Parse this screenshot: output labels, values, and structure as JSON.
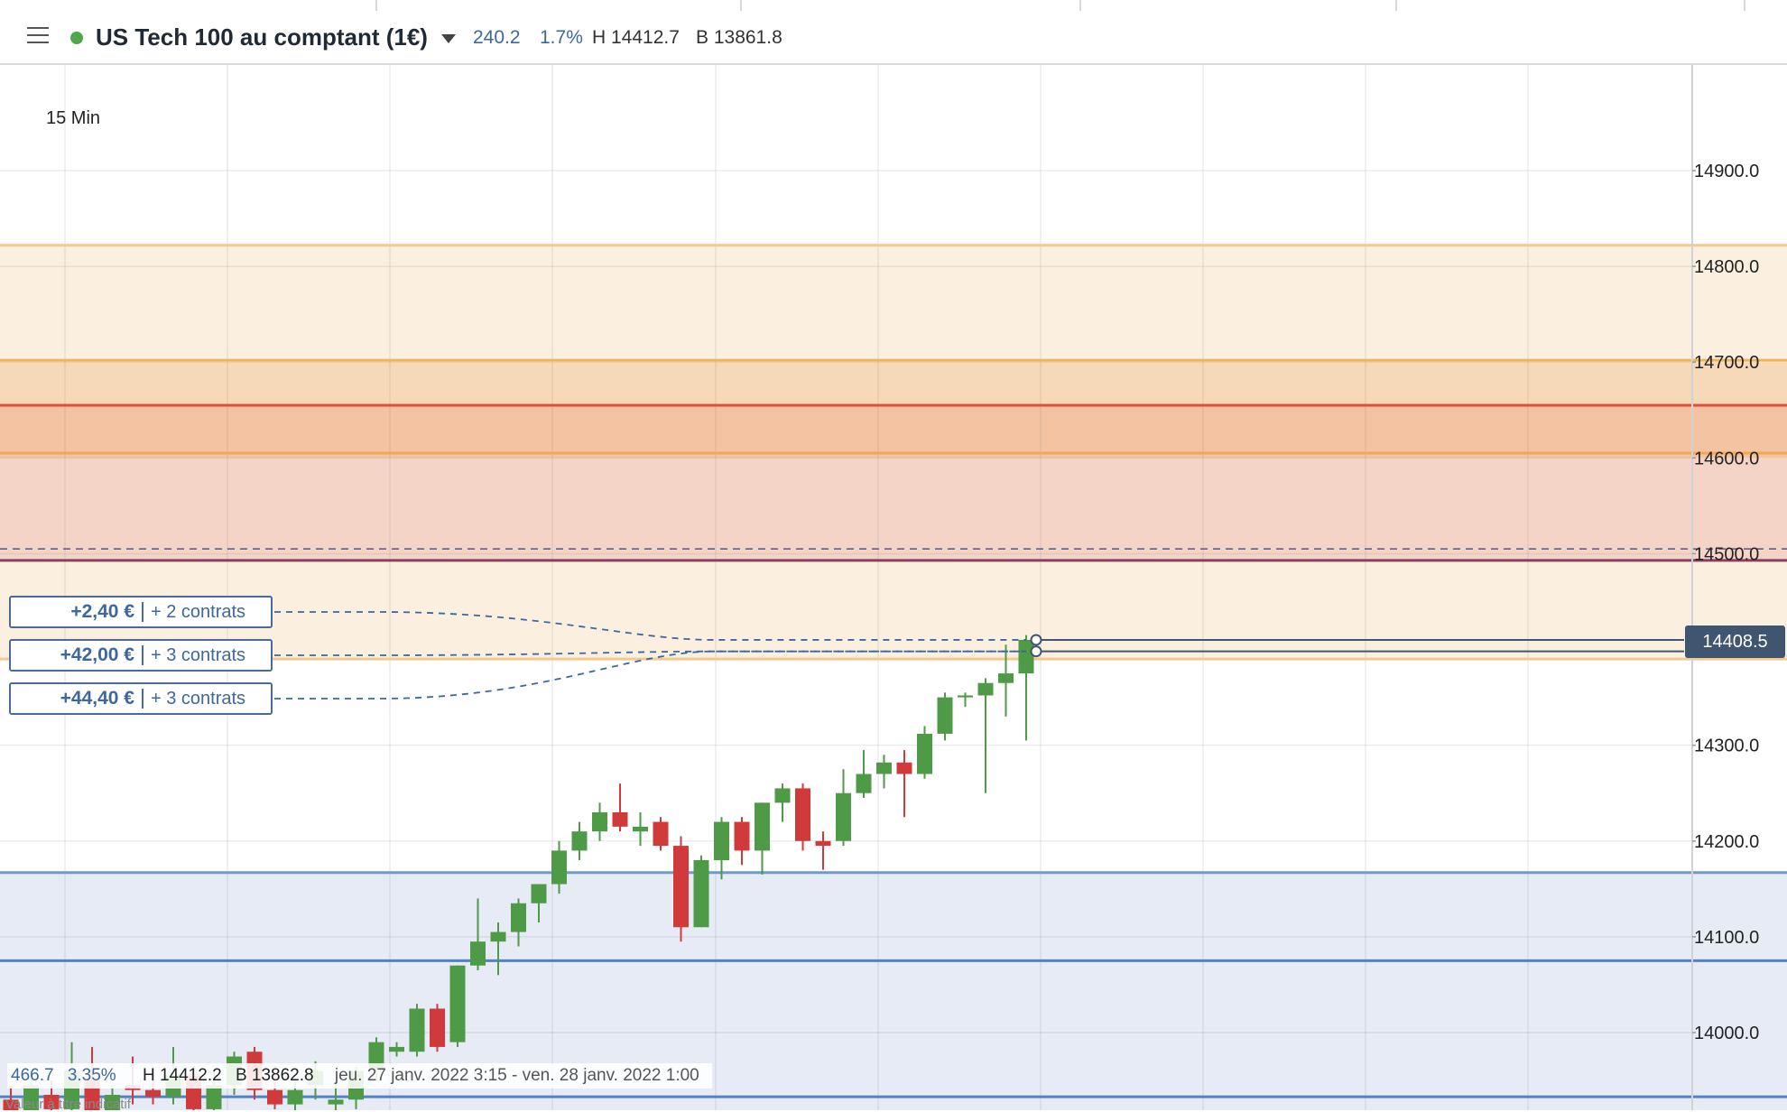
{
  "header": {
    "instrument_name": "US Tech 100 au comptant (1€)",
    "change_points": "240.2",
    "change_percent": "1.7%",
    "high": "H 14412.7",
    "low": "B 13861.8"
  },
  "colors": {
    "up": "#4e9a47",
    "down": "#d13a3a",
    "accent_blue": "#3d679e",
    "status_dot": "#4ea84a",
    "price_tag_bg": "#3f5570"
  },
  "chart": {
    "timeframe_label": "15 Min",
    "current_price_label": "14408.5",
    "positions": [
      {
        "pnl": "+2,40 €",
        "contracts": "+ 2 contrats"
      },
      {
        "pnl": "+42,00 €",
        "contracts": "+ 3 contrats"
      },
      {
        "pnl": "+44,40 €",
        "contracts": "+ 3 contrats"
      }
    ]
  },
  "footer": {
    "range_points": "466.7",
    "range_percent": "3.35%",
    "high": "H 14412.2",
    "low": "B 13862.8",
    "period": "jeu. 27 janv. 2022 3:15 - ven. 28 janv. 2022 1:00",
    "disclaimer": "Valeur à titre indicatif"
  },
  "chart_data": {
    "type": "candlestick",
    "y_ticks": [
      "14900.0",
      "14800.0",
      "14700.0",
      "14600.0",
      "14500.0",
      "14300.0",
      "14200.0",
      "14100.0",
      "14000.0"
    ],
    "y_range": [
      13910,
      14985
    ],
    "grid": true,
    "zones": [
      {
        "from": 14390,
        "to": 14822,
        "color": "#fbf0df"
      },
      {
        "from": 14500,
        "to": 14700,
        "color": "#f6d9b8"
      },
      {
        "from": 14600,
        "to": 14655,
        "color": "#f3c3a2"
      },
      {
        "from": 14492,
        "to": 14600,
        "color": "#f4d4c6"
      },
      {
        "from": 13910,
        "to": 14167,
        "color": "#e6ebf5"
      }
    ],
    "levels": [
      {
        "price": 14822,
        "color": "#f2c98e",
        "style": "solid"
      },
      {
        "price": 14702,
        "color": "#f0b453",
        "style": "solid"
      },
      {
        "price": 14655,
        "color": "#df4f3c",
        "style": "solid"
      },
      {
        "price": 14605,
        "color": "#f0a855",
        "style": "solid"
      },
      {
        "price": 14505,
        "color": "#55578a",
        "style": "dashed"
      },
      {
        "price": 14493,
        "color": "#8a3f60",
        "style": "solid"
      },
      {
        "price": 14390,
        "color": "#f2c98e",
        "style": "solid"
      },
      {
        "price": 14167,
        "color": "#6f9ad0",
        "style": "solid"
      },
      {
        "price": 14075,
        "color": "#4f82c6",
        "style": "solid"
      },
      {
        "price": 13933,
        "color": "#4f82c6",
        "style": "solid"
      }
    ],
    "position_entries": [
      14410,
      14398,
      14398
    ],
    "candles": [
      {
        "o": 13930,
        "h": 13945,
        "l": 13900,
        "c": 13905
      },
      {
        "o": 13900,
        "h": 13960,
        "l": 13895,
        "c": 13945
      },
      {
        "o": 13935,
        "h": 13950,
        "l": 13900,
        "c": 13920
      },
      {
        "o": 13920,
        "h": 13990,
        "l": 13910,
        "c": 13960
      },
      {
        "o": 13950,
        "h": 13985,
        "l": 13890,
        "c": 13900
      },
      {
        "o": 13905,
        "h": 13945,
        "l": 13895,
        "c": 13935
      },
      {
        "o": 13945,
        "h": 13975,
        "l": 13925,
        "c": 13940
      },
      {
        "o": 13940,
        "h": 13960,
        "l": 13925,
        "c": 13933
      },
      {
        "o": 13933,
        "h": 13985,
        "l": 13925,
        "c": 13955
      },
      {
        "o": 13955,
        "h": 13965,
        "l": 13915,
        "c": 13920
      },
      {
        "o": 13920,
        "h": 13960,
        "l": 13910,
        "c": 13945
      },
      {
        "o": 13945,
        "h": 13980,
        "l": 13935,
        "c": 13975
      },
      {
        "o": 13980,
        "h": 13985,
        "l": 13930,
        "c": 13940
      },
      {
        "o": 13940,
        "h": 13965,
        "l": 13920,
        "c": 13925
      },
      {
        "o": 13925,
        "h": 13950,
        "l": 13915,
        "c": 13940
      },
      {
        "o": 13945,
        "h": 13970,
        "l": 13930,
        "c": 13960
      },
      {
        "o": 13925,
        "h": 13950,
        "l": 13915,
        "c": 13930
      },
      {
        "o": 13930,
        "h": 13965,
        "l": 13920,
        "c": 13960
      },
      {
        "o": 13960,
        "h": 13995,
        "l": 13950,
        "c": 13990
      },
      {
        "o": 13980,
        "h": 13990,
        "l": 13975,
        "c": 13985
      },
      {
        "o": 13980,
        "h": 14030,
        "l": 13975,
        "c": 14025
      },
      {
        "o": 14025,
        "h": 14030,
        "l": 13980,
        "c": 13985
      },
      {
        "o": 13990,
        "h": 14070,
        "l": 13985,
        "c": 14070
      },
      {
        "o": 14070,
        "h": 14140,
        "l": 14065,
        "c": 14095
      },
      {
        "o": 14095,
        "h": 14115,
        "l": 14060,
        "c": 14105
      },
      {
        "o": 14105,
        "h": 14140,
        "l": 14090,
        "c": 14135
      },
      {
        "o": 14135,
        "h": 14150,
        "l": 14115,
        "c": 14155
      },
      {
        "o": 14155,
        "h": 14200,
        "l": 14145,
        "c": 14190
      },
      {
        "o": 14190,
        "h": 14220,
        "l": 14180,
        "c": 14210
      },
      {
        "o": 14210,
        "h": 14240,
        "l": 14200,
        "c": 14230
      },
      {
        "o": 14230,
        "h": 14260,
        "l": 14210,
        "c": 14215
      },
      {
        "o": 14210,
        "h": 14230,
        "l": 14195,
        "c": 14215
      },
      {
        "o": 14220,
        "h": 14225,
        "l": 14190,
        "c": 14195
      },
      {
        "o": 14195,
        "h": 14205,
        "l": 14095,
        "c": 14110
      },
      {
        "o": 14110,
        "h": 14185,
        "l": 14110,
        "c": 14180
      },
      {
        "o": 14180,
        "h": 14225,
        "l": 14160,
        "c": 14220
      },
      {
        "o": 14220,
        "h": 14225,
        "l": 14175,
        "c": 14190
      },
      {
        "o": 14190,
        "h": 14240,
        "l": 14165,
        "c": 14240
      },
      {
        "o": 14240,
        "h": 14260,
        "l": 14220,
        "c": 14255
      },
      {
        "o": 14255,
        "h": 14260,
        "l": 14190,
        "c": 14200
      },
      {
        "o": 14200,
        "h": 14210,
        "l": 14170,
        "c": 14195
      },
      {
        "o": 14200,
        "h": 14275,
        "l": 14195,
        "c": 14250
      },
      {
        "o": 14250,
        "h": 14295,
        "l": 14245,
        "c": 14270
      },
      {
        "o": 14270,
        "h": 14290,
        "l": 14255,
        "c": 14282
      },
      {
        "o": 14282,
        "h": 14295,
        "l": 14225,
        "c": 14270
      },
      {
        "o": 14270,
        "h": 14320,
        "l": 14265,
        "c": 14312
      },
      {
        "o": 14312,
        "h": 14355,
        "l": 14305,
        "c": 14350
      },
      {
        "o": 14350,
        "h": 14355,
        "l": 14340,
        "c": 14352
      },
      {
        "o": 14352,
        "h": 14370,
        "l": 14250,
        "c": 14365
      },
      {
        "o": 14365,
        "h": 14405,
        "l": 14330,
        "c": 14375
      },
      {
        "o": 14375,
        "h": 14415,
        "l": 14305,
        "c": 14410
      }
    ]
  }
}
